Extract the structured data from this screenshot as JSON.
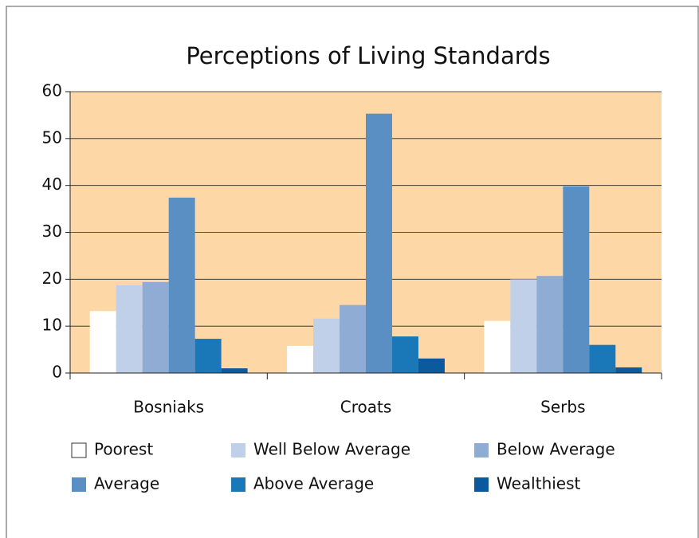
{
  "chart_data": {
    "type": "bar",
    "title": "Perceptions of Living Standards",
    "categories": [
      "Bosniaks",
      "Croats",
      "Serbs"
    ],
    "series": [
      {
        "name": "Poorest",
        "color": "#ffffff",
        "values": [
          13.2,
          5.8,
          11.1
        ]
      },
      {
        "name": "Well Below Average",
        "color": "#c0d0e8",
        "values": [
          18.7,
          11.6,
          20
        ]
      },
      {
        "name": "Below Average",
        "color": "#8eacd4",
        "values": [
          19.4,
          14.5,
          20.7
        ]
      },
      {
        "name": "Average",
        "color": "#5a8fc4",
        "values": [
          37.4,
          55.3,
          39.8
        ]
      },
      {
        "name": "Above Average",
        "color": "#1a78b8",
        "values": [
          7.3,
          7.8,
          6
        ]
      },
      {
        "name": "Wealthiest",
        "color": "#0b5a9e",
        "values": [
          1,
          3.1,
          1.2
        ]
      }
    ],
    "ylim": [
      0,
      60
    ],
    "yticks": [
      0,
      10,
      20,
      30,
      40,
      50,
      60
    ],
    "grid": true,
    "plot_background": "#fdd8a6",
    "legend": "bottom"
  }
}
